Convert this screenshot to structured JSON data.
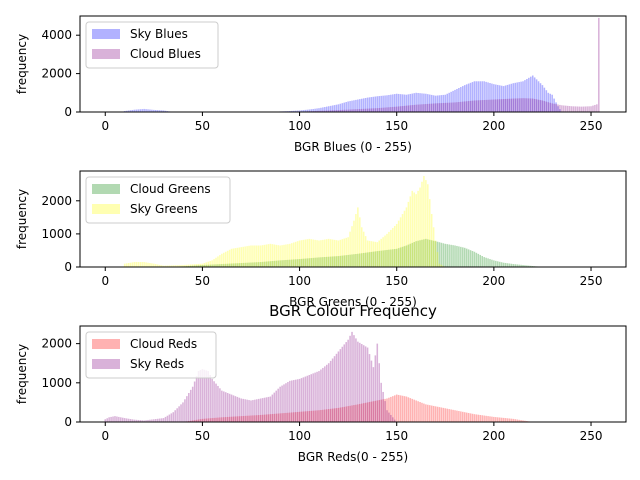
{
  "chart_data": [
    {
      "type": "bar",
      "title": "",
      "xlabel": "BGR Blues (0 - 255)",
      "ylabel": "frequency",
      "xlim": [
        -13,
        268
      ],
      "ylim": [
        0,
        5000
      ],
      "xticks": [
        0,
        50,
        100,
        150,
        200,
        250
      ],
      "yticks": [
        0,
        2000,
        4000
      ],
      "legend": "top-left",
      "series": [
        {
          "name": "Sky Blues",
          "color": "#0000ff",
          "alpha": 0.3,
          "points": [
            [
              10,
              50
            ],
            [
              15,
              120
            ],
            [
              20,
              160
            ],
            [
              25,
              110
            ],
            [
              30,
              80
            ],
            [
              35,
              0
            ],
            [
              85,
              0
            ],
            [
              90,
              30
            ],
            [
              95,
              50
            ],
            [
              100,
              80
            ],
            [
              105,
              130
            ],
            [
              110,
              200
            ],
            [
              115,
              300
            ],
            [
              120,
              400
            ],
            [
              125,
              550
            ],
            [
              130,
              650
            ],
            [
              135,
              750
            ],
            [
              140,
              820
            ],
            [
              145,
              870
            ],
            [
              150,
              950
            ],
            [
              155,
              900
            ],
            [
              160,
              1000
            ],
            [
              165,
              950
            ],
            [
              170,
              850
            ],
            [
              175,
              900
            ],
            [
              180,
              1150
            ],
            [
              185,
              1400
            ],
            [
              190,
              1600
            ],
            [
              195,
              1600
            ],
            [
              200,
              1450
            ],
            [
              205,
              1350
            ],
            [
              210,
              1500
            ],
            [
              215,
              1600
            ],
            [
              220,
              1900
            ],
            [
              225,
              1400
            ],
            [
              228,
              1000
            ],
            [
              230,
              900
            ],
            [
              233,
              300
            ],
            [
              235,
              0
            ]
          ]
        },
        {
          "name": "Cloud Blues",
          "color": "#800080",
          "alpha": 0.3,
          "points": [
            [
              90,
              0
            ],
            [
              100,
              20
            ],
            [
              110,
              60
            ],
            [
              120,
              100
            ],
            [
              130,
              150
            ],
            [
              140,
              200
            ],
            [
              150,
              280
            ],
            [
              160,
              380
            ],
            [
              170,
              450
            ],
            [
              180,
              500
            ],
            [
              190,
              600
            ],
            [
              200,
              650
            ],
            [
              210,
              700
            ],
            [
              215,
              720
            ],
            [
              220,
              700
            ],
            [
              225,
              600
            ],
            [
              230,
              450
            ],
            [
              235,
              350
            ],
            [
              240,
              300
            ],
            [
              245,
              280
            ],
            [
              250,
              300
            ],
            [
              253,
              400
            ],
            [
              254,
              4900
            ],
            [
              255,
              0
            ]
          ]
        }
      ]
    },
    {
      "type": "bar",
      "title": "",
      "xlabel": "BGR Greens (0 - 255)",
      "ylabel": "frequency",
      "xlim": [
        -13,
        268
      ],
      "ylim": [
        0,
        2900
      ],
      "xticks": [
        0,
        50,
        100,
        150,
        200,
        250
      ],
      "yticks": [
        0,
        1000,
        2000
      ],
      "legend": "top-left",
      "series": [
        {
          "name": "Cloud Greens",
          "color": "#008000",
          "alpha": 0.3,
          "points": [
            [
              30,
              0
            ],
            [
              40,
              20
            ],
            [
              50,
              60
            ],
            [
              60,
              90
            ],
            [
              70,
              120
            ],
            [
              80,
              150
            ],
            [
              90,
              200
            ],
            [
              100,
              240
            ],
            [
              110,
              290
            ],
            [
              120,
              330
            ],
            [
              130,
              400
            ],
            [
              140,
              480
            ],
            [
              150,
              550
            ],
            [
              155,
              650
            ],
            [
              160,
              780
            ],
            [
              165,
              850
            ],
            [
              170,
              780
            ],
            [
              175,
              700
            ],
            [
              180,
              650
            ],
            [
              185,
              580
            ],
            [
              190,
              460
            ],
            [
              195,
              300
            ],
            [
              200,
              200
            ],
            [
              205,
              130
            ],
            [
              210,
              90
            ],
            [
              215,
              60
            ],
            [
              220,
              30
            ],
            [
              225,
              0
            ]
          ]
        },
        {
          "name": "Sky Greens",
          "color": "#ffff00",
          "alpha": 0.3,
          "points": [
            [
              10,
              100
            ],
            [
              15,
              150
            ],
            [
              20,
              150
            ],
            [
              25,
              100
            ],
            [
              30,
              40
            ],
            [
              40,
              60
            ],
            [
              50,
              100
            ],
            [
              55,
              200
            ],
            [
              60,
              400
            ],
            [
              65,
              550
            ],
            [
              70,
              600
            ],
            [
              75,
              650
            ],
            [
              80,
              650
            ],
            [
              85,
              700
            ],
            [
              90,
              650
            ],
            [
              95,
              700
            ],
            [
              100,
              800
            ],
            [
              105,
              850
            ],
            [
              110,
              800
            ],
            [
              115,
              850
            ],
            [
              120,
              800
            ],
            [
              125,
              900
            ],
            [
              128,
              1400
            ],
            [
              130,
              1800
            ],
            [
              132,
              1200
            ],
            [
              135,
              800
            ],
            [
              140,
              750
            ],
            [
              145,
              1000
            ],
            [
              150,
              1300
            ],
            [
              155,
              1800
            ],
            [
              158,
              2300
            ],
            [
              160,
              2200
            ],
            [
              162,
              2400
            ],
            [
              164,
              2750
            ],
            [
              166,
              2500
            ],
            [
              168,
              1600
            ],
            [
              170,
              800
            ],
            [
              172,
              100
            ],
            [
              175,
              0
            ]
          ]
        }
      ]
    },
    {
      "type": "bar",
      "title": "BGR Colour Frequency",
      "xlabel": "BGR Reds(0 - 255)",
      "ylabel": "frequency",
      "xlim": [
        -13,
        268
      ],
      "ylim": [
        0,
        2450
      ],
      "xticks": [
        0,
        50,
        100,
        150,
        200,
        250
      ],
      "yticks": [
        0,
        1000,
        2000
      ],
      "legend": "top-left",
      "series": [
        {
          "name": "Cloud Reds",
          "color": "#ff0000",
          "alpha": 0.3,
          "points": [
            [
              40,
              0
            ],
            [
              50,
              80
            ],
            [
              60,
              120
            ],
            [
              70,
              150
            ],
            [
              80,
              180
            ],
            [
              90,
              220
            ],
            [
              100,
              260
            ],
            [
              110,
              300
            ],
            [
              120,
              360
            ],
            [
              130,
              450
            ],
            [
              135,
              500
            ],
            [
              140,
              550
            ],
            [
              145,
              600
            ],
            [
              150,
              700
            ],
            [
              155,
              650
            ],
            [
              160,
              550
            ],
            [
              165,
              450
            ],
            [
              170,
              400
            ],
            [
              175,
              350
            ],
            [
              180,
              300
            ],
            [
              190,
              200
            ],
            [
              200,
              130
            ],
            [
              210,
              80
            ],
            [
              215,
              40
            ],
            [
              220,
              0
            ]
          ]
        },
        {
          "name": "Sky Reds",
          "color": "#800080",
          "alpha": 0.3,
          "points": [
            [
              0,
              70
            ],
            [
              2,
              120
            ],
            [
              5,
              150
            ],
            [
              10,
              100
            ],
            [
              15,
              60
            ],
            [
              20,
              40
            ],
            [
              30,
              100
            ],
            [
              35,
              250
            ],
            [
              40,
              500
            ],
            [
              45,
              900
            ],
            [
              48,
              1300
            ],
            [
              50,
              1350
            ],
            [
              53,
              1300
            ],
            [
              55,
              1100
            ],
            [
              60,
              800
            ],
            [
              65,
              700
            ],
            [
              70,
              600
            ],
            [
              75,
              550
            ],
            [
              80,
              600
            ],
            [
              85,
              650
            ],
            [
              90,
              900
            ],
            [
              95,
              1050
            ],
            [
              100,
              1100
            ],
            [
              105,
              1200
            ],
            [
              110,
              1300
            ],
            [
              115,
              1500
            ],
            [
              120,
              1800
            ],
            [
              125,
              2100
            ],
            [
              127,
              2300
            ],
            [
              130,
              2050
            ],
            [
              135,
              1900
            ],
            [
              138,
              1400
            ],
            [
              140,
              2000
            ],
            [
              142,
              1000
            ],
            [
              145,
              300
            ],
            [
              150,
              0
            ]
          ]
        }
      ]
    }
  ]
}
